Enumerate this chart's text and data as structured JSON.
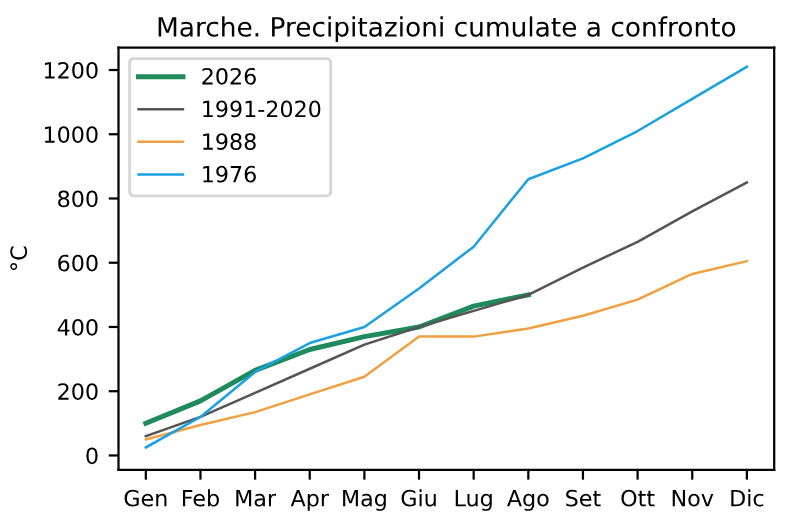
{
  "chart_data": {
    "type": "line",
    "title": "Marche. Precipitazioni cumulate a confronto",
    "ylabel": "°C",
    "categories": [
      "Gen",
      "Feb",
      "Mar",
      "Apr",
      "Mag",
      "Giu",
      "Lug",
      "Ago",
      "Set",
      "Ott",
      "Nov",
      "Dic"
    ],
    "series": [
      {
        "name": "2026",
        "color": "#1f8a5c",
        "values": [
          100,
          170,
          265,
          330,
          370,
          400,
          465,
          500,
          null,
          null,
          null,
          null
        ]
      },
      {
        "name": "1991-2020",
        "color": "#555555",
        "values": [
          60,
          120,
          195,
          270,
          345,
          400,
          450,
          500,
          585,
          665,
          760,
          850
        ]
      },
      {
        "name": "1988",
        "color": "#f0a040",
        "values": [
          50,
          95,
          135,
          190,
          245,
          370,
          370,
          395,
          435,
          485,
          565,
          605
        ]
      },
      {
        "name": "1976",
        "color": "#1ba1e2",
        "values": [
          25,
          120,
          260,
          350,
          400,
          520,
          650,
          860,
          925,
          1010,
          1110,
          1210
        ]
      }
    ],
    "ylim": [
      -45,
      1270
    ],
    "yticks": [
      0,
      200,
      400,
      600,
      800,
      1000,
      1200
    ],
    "grid": false,
    "legend": "top left",
    "marker": "none",
    "line_style": "solid"
  }
}
